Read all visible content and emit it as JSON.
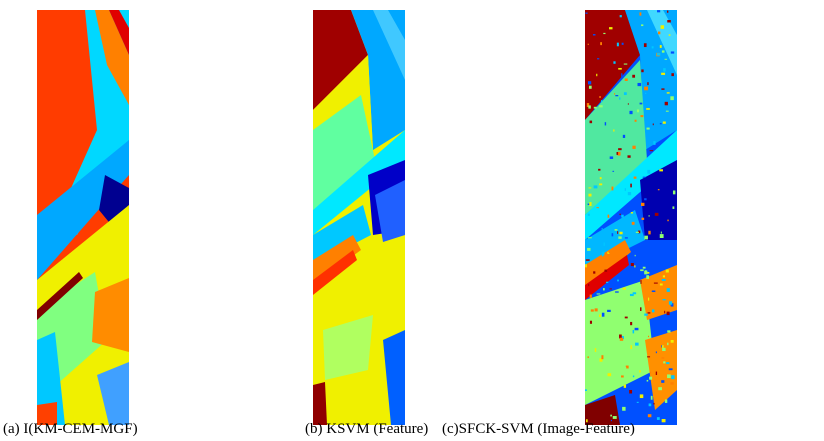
{
  "figure": {
    "panels": [
      {
        "caption": "(a) I(KM-CEM-MGF)"
      },
      {
        "caption": "(b) KSVM (Feature)"
      },
      {
        "caption": "(c)SFCK-SVM (Image-Feature)"
      }
    ]
  }
}
